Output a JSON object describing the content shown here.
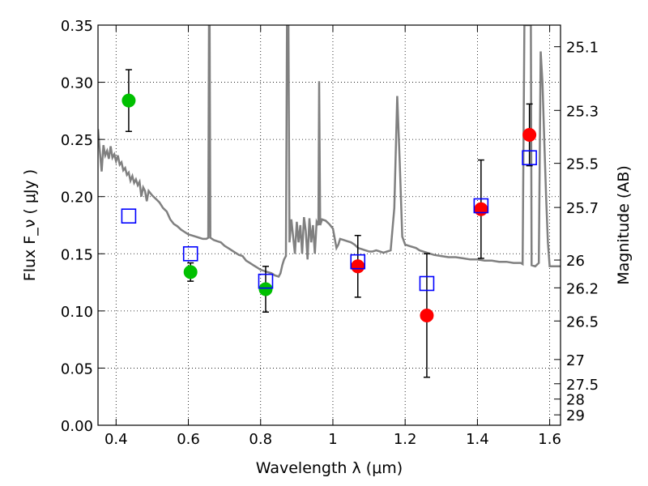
{
  "chart_data": {
    "type": "scatter",
    "title": "",
    "xlabel": "Wavelength  λ (μm)",
    "ylabel": "Flux  F_ν  ( μJy )",
    "ylabel_right": "Magnitude (AB)",
    "xlim": [
      0.35,
      1.63
    ],
    "ylim": [
      0.0,
      0.35
    ],
    "grid": true,
    "legend": "none",
    "x_ticks": [
      0.4,
      0.6,
      0.8,
      1.0,
      1.2,
      1.4,
      1.6
    ],
    "x_tick_labels": [
      "0.4",
      "0.6",
      "0.8",
      "1",
      "1.2",
      "1.4",
      "1.6"
    ],
    "y_ticks": [
      0.0,
      0.05,
      0.1,
      0.15,
      0.2,
      0.25,
      0.3,
      0.35
    ],
    "y_tick_labels": [
      "0.00",
      "0.05",
      "0.10",
      "0.15",
      "0.20",
      "0.25",
      "0.30",
      "0.35"
    ],
    "right_ticks": [
      {
        "label": "25.1",
        "flux": 0.3311
      },
      {
        "label": "25.3",
        "flux": 0.2754
      },
      {
        "label": "25.5",
        "flux": 0.2291
      },
      {
        "label": "25.7",
        "flux": 0.1905
      },
      {
        "label": "26",
        "flux": 0.1445
      },
      {
        "label": "26.2",
        "flux": 0.1202
      },
      {
        "label": "26.5",
        "flux": 0.0912
      },
      {
        "label": "27",
        "flux": 0.0575
      },
      {
        "label": "27.5",
        "flux": 0.0363
      },
      {
        "label": "28",
        "flux": 0.0229
      },
      {
        "label": "29",
        "flux": 0.0091
      }
    ],
    "series": [
      {
        "kind": "observed",
        "color": "#00c000",
        "marker": "circle",
        "points": [
          {
            "x": 0.435,
            "y": 0.284,
            "err_lo": 0.257,
            "err_hi": 0.311
          },
          {
            "x": 0.606,
            "y": 0.134,
            "err_lo": 0.126,
            "err_hi": 0.142
          },
          {
            "x": 0.814,
            "y": 0.119,
            "err_lo": 0.099,
            "err_hi": 0.139
          }
        ]
      },
      {
        "kind": "observed",
        "color": "#ff0000",
        "marker": "circle",
        "points": [
          {
            "x": 1.069,
            "y": 0.139,
            "err_lo": 0.112,
            "err_hi": 0.166
          },
          {
            "x": 1.26,
            "y": 0.096,
            "err_lo": 0.042,
            "err_hi": 0.15
          },
          {
            "x": 1.41,
            "y": 0.189,
            "err_lo": 0.146,
            "err_hi": 0.232
          },
          {
            "x": 1.544,
            "y": 0.254,
            "err_lo": 0.227,
            "err_hi": 0.281
          }
        ]
      },
      {
        "kind": "model",
        "color": "#0000ff",
        "marker": "square",
        "points": [
          {
            "x": 0.435,
            "y": 0.183
          },
          {
            "x": 0.606,
            "y": 0.15
          },
          {
            "x": 0.814,
            "y": 0.126
          },
          {
            "x": 1.069,
            "y": 0.143
          },
          {
            "x": 1.26,
            "y": 0.124
          },
          {
            "x": 1.41,
            "y": 0.192
          },
          {
            "x": 1.544,
            "y": 0.234
          }
        ]
      }
    ],
    "spectrum": {
      "color": "#808080",
      "points": [
        [
          0.35,
          0.259
        ],
        [
          0.355,
          0.24
        ],
        [
          0.36,
          0.222
        ],
        [
          0.365,
          0.245
        ],
        [
          0.37,
          0.236
        ],
        [
          0.375,
          0.24
        ],
        [
          0.38,
          0.233
        ],
        [
          0.385,
          0.244
        ],
        [
          0.39,
          0.234
        ],
        [
          0.395,
          0.237
        ],
        [
          0.4,
          0.231
        ],
        [
          0.405,
          0.236
        ],
        [
          0.41,
          0.228
        ],
        [
          0.415,
          0.23
        ],
        [
          0.42,
          0.223
        ],
        [
          0.425,
          0.225
        ],
        [
          0.43,
          0.219
        ],
        [
          0.435,
          0.221
        ],
        [
          0.44,
          0.214
        ],
        [
          0.445,
          0.218
        ],
        [
          0.45,
          0.212
        ],
        [
          0.455,
          0.215
        ],
        [
          0.46,
          0.21
        ],
        [
          0.465,
          0.213
        ],
        [
          0.47,
          0.2
        ],
        [
          0.475,
          0.208
        ],
        [
          0.48,
          0.205
        ],
        [
          0.485,
          0.196
        ],
        [
          0.49,
          0.205
        ],
        [
          0.495,
          0.203
        ],
        [
          0.5,
          0.201
        ],
        [
          0.51,
          0.198
        ],
        [
          0.52,
          0.195
        ],
        [
          0.53,
          0.19
        ],
        [
          0.54,
          0.187
        ],
        [
          0.55,
          0.18
        ],
        [
          0.56,
          0.176
        ],
        [
          0.57,
          0.174
        ],
        [
          0.58,
          0.171
        ],
        [
          0.59,
          0.169
        ],
        [
          0.6,
          0.167
        ],
        [
          0.61,
          0.166
        ],
        [
          0.62,
          0.165
        ],
        [
          0.63,
          0.164
        ],
        [
          0.64,
          0.163
        ],
        [
          0.65,
          0.163
        ],
        [
          0.655,
          0.164
        ],
        [
          0.657,
          0.35
        ],
        [
          0.659,
          0.35
        ],
        [
          0.661,
          0.164
        ],
        [
          0.67,
          0.162
        ],
        [
          0.68,
          0.161
        ],
        [
          0.69,
          0.16
        ],
        [
          0.7,
          0.157
        ],
        [
          0.71,
          0.155
        ],
        [
          0.72,
          0.153
        ],
        [
          0.73,
          0.151
        ],
        [
          0.74,
          0.149
        ],
        [
          0.75,
          0.148
        ],
        [
          0.76,
          0.144
        ],
        [
          0.77,
          0.142
        ],
        [
          0.78,
          0.14
        ],
        [
          0.79,
          0.138
        ],
        [
          0.8,
          0.136
        ],
        [
          0.81,
          0.135
        ],
        [
          0.82,
          0.134
        ],
        [
          0.83,
          0.133
        ],
        [
          0.84,
          0.131
        ],
        [
          0.85,
          0.13
        ],
        [
          0.855,
          0.133
        ],
        [
          0.86,
          0.14
        ],
        [
          0.865,
          0.145
        ],
        [
          0.87,
          0.148
        ],
        [
          0.873,
          0.35
        ],
        [
          0.877,
          0.35
        ],
        [
          0.88,
          0.16
        ],
        [
          0.885,
          0.18
        ],
        [
          0.89,
          0.165
        ],
        [
          0.895,
          0.15
        ],
        [
          0.9,
          0.178
        ],
        [
          0.905,
          0.16
        ],
        [
          0.91,
          0.175
        ],
        [
          0.915,
          0.15
        ],
        [
          0.92,
          0.182
        ],
        [
          0.925,
          0.17
        ],
        [
          0.93,
          0.145
        ],
        [
          0.935,
          0.181
        ],
        [
          0.94,
          0.16
        ],
        [
          0.945,
          0.175
        ],
        [
          0.95,
          0.15
        ],
        [
          0.955,
          0.178
        ],
        [
          0.96,
          0.175
        ],
        [
          0.962,
          0.301
        ],
        [
          0.965,
          0.175
        ],
        [
          0.97,
          0.18
        ],
        [
          0.98,
          0.179
        ],
        [
          0.99,
          0.176
        ],
        [
          1.0,
          0.172
        ],
        [
          1.01,
          0.155
        ],
        [
          1.015,
          0.158
        ],
        [
          1.02,
          0.163
        ],
        [
          1.03,
          0.162
        ],
        [
          1.04,
          0.161
        ],
        [
          1.05,
          0.16
        ],
        [
          1.06,
          0.158
        ],
        [
          1.07,
          0.155
        ],
        [
          1.08,
          0.154
        ],
        [
          1.09,
          0.153
        ],
        [
          1.1,
          0.152
        ],
        [
          1.11,
          0.152
        ],
        [
          1.12,
          0.153
        ],
        [
          1.13,
          0.152
        ],
        [
          1.14,
          0.151
        ],
        [
          1.15,
          0.152
        ],
        [
          1.16,
          0.153
        ],
        [
          1.17,
          0.19
        ],
        [
          1.178,
          0.288
        ],
        [
          1.185,
          0.23
        ],
        [
          1.192,
          0.165
        ],
        [
          1.2,
          0.158
        ],
        [
          1.21,
          0.157
        ],
        [
          1.22,
          0.156
        ],
        [
          1.23,
          0.155
        ],
        [
          1.24,
          0.153
        ],
        [
          1.26,
          0.151
        ],
        [
          1.28,
          0.149
        ],
        [
          1.3,
          0.148
        ],
        [
          1.32,
          0.147
        ],
        [
          1.34,
          0.147
        ],
        [
          1.36,
          0.146
        ],
        [
          1.38,
          0.145
        ],
        [
          1.4,
          0.145
        ],
        [
          1.42,
          0.144
        ],
        [
          1.44,
          0.144
        ],
        [
          1.46,
          0.143
        ],
        [
          1.48,
          0.143
        ],
        [
          1.5,
          0.142
        ],
        [
          1.52,
          0.142
        ],
        [
          1.525,
          0.141
        ],
        [
          1.53,
          0.35
        ],
        [
          1.548,
          0.35
        ],
        [
          1.55,
          0.14
        ],
        [
          1.56,
          0.139
        ],
        [
          1.57,
          0.142
        ],
        [
          1.575,
          0.327
        ],
        [
          1.58,
          0.3
        ],
        [
          1.585,
          0.25
        ],
        [
          1.59,
          0.2
        ],
        [
          1.595,
          0.16
        ],
        [
          1.6,
          0.139
        ],
        [
          1.63,
          0.139
        ]
      ]
    }
  }
}
